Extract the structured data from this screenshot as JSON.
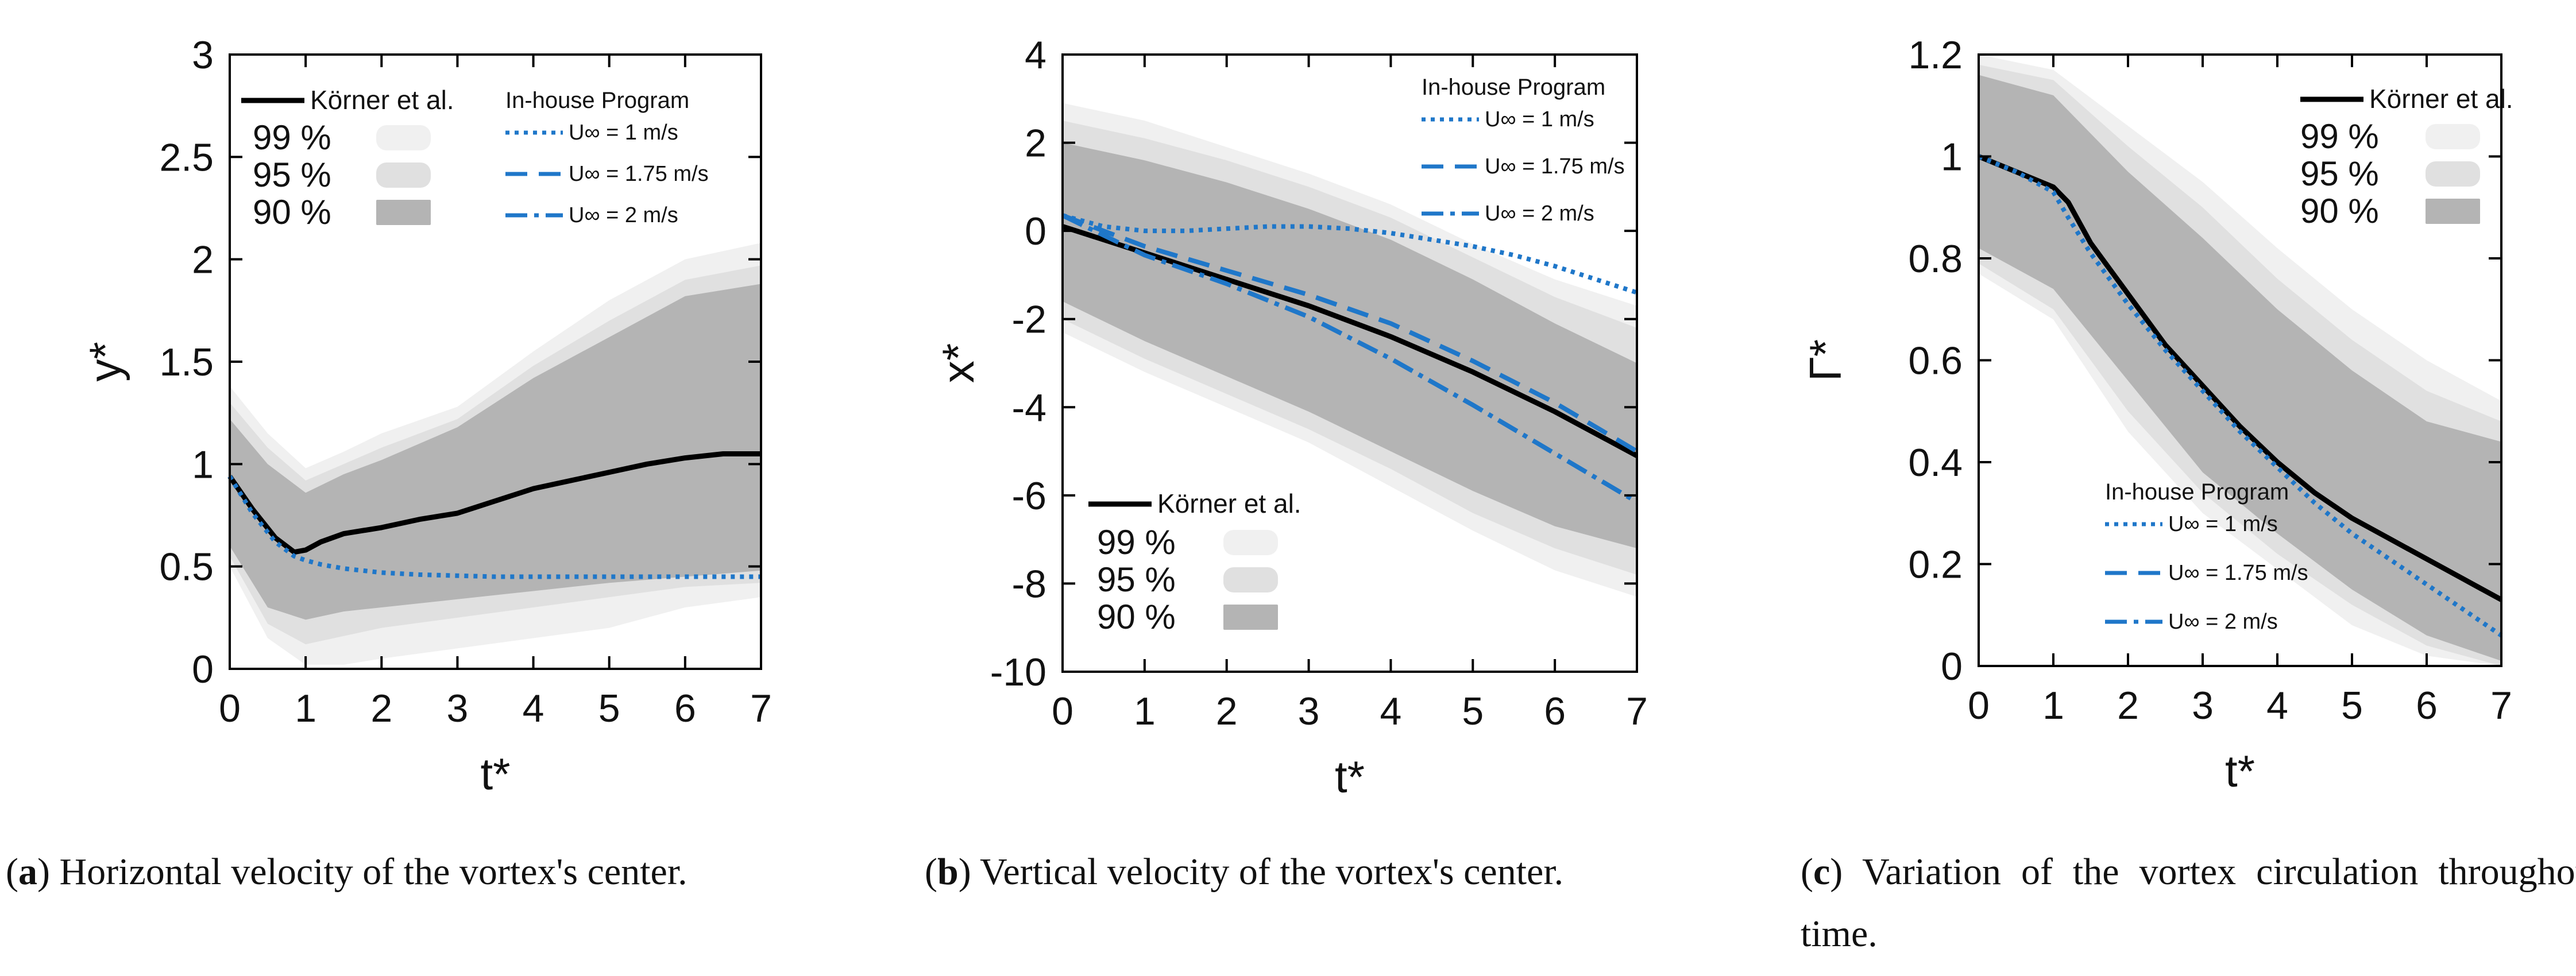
{
  "chart_data": [
    {
      "type": "line",
      "id": "a",
      "xlabel": "t*",
      "ylabel": "y*",
      "xlim": [
        0,
        7
      ],
      "ylim": [
        0,
        3
      ],
      "xticks": [
        "0",
        "1",
        "2",
        "3",
        "4",
        "5",
        "6",
        "7"
      ],
      "yticks": [
        "0",
        "0.5",
        "1",
        "1.5",
        "2",
        "2.5",
        "3"
      ],
      "caption_label": "a",
      "caption_text": "Horizontal velocity of the vortex's center.",
      "legend": {
        "reference": "Körner et al.",
        "bands": [
          "99 %",
          "95 %",
          "90 %"
        ],
        "inhouse_title": "In-house Program",
        "inhouse_items": [
          "U∞ = 1 m/s",
          "U∞ = 1.75 m/s",
          "U∞ = 2 m/s"
        ]
      },
      "series": [
        {
          "name": "Körner et al.",
          "x": [
            0,
            0.3,
            0.6,
            0.85,
            1.0,
            1.2,
            1.5,
            2.0,
            2.5,
            3.0,
            3.5,
            4.0,
            4.5,
            5.0,
            5.5,
            6.0,
            6.5,
            7.0
          ],
          "y": [
            0.94,
            0.78,
            0.64,
            0.57,
            0.58,
            0.62,
            0.66,
            0.69,
            0.73,
            0.76,
            0.82,
            0.88,
            0.92,
            0.96,
            1.0,
            1.03,
            1.05,
            1.05
          ]
        },
        {
          "name": "U∞ = 1 m/s",
          "x": [
            0,
            0.3,
            0.6,
            0.85,
            1.0,
            1.2,
            1.5,
            2.0,
            2.5,
            3.0,
            3.5,
            4.0,
            4.5,
            5.0,
            5.5,
            6.0,
            6.5,
            7.0
          ],
          "y": [
            0.94,
            0.76,
            0.62,
            0.55,
            0.53,
            0.51,
            0.49,
            0.47,
            0.46,
            0.455,
            0.45,
            0.45,
            0.45,
            0.45,
            0.45,
            0.45,
            0.45,
            0.45
          ]
        }
      ],
      "bands": [
        {
          "name": "99 %",
          "x": [
            0,
            0.5,
            1.0,
            1.5,
            2.0,
            3.0,
            4.0,
            5.0,
            6.0,
            7.0
          ],
          "lower": [
            0.5,
            0.15,
            0.02,
            0.02,
            0.05,
            0.1,
            0.15,
            0.2,
            0.3,
            0.35
          ],
          "upper": [
            1.38,
            1.15,
            0.98,
            1.06,
            1.15,
            1.28,
            1.55,
            1.8,
            2.0,
            2.08
          ]
        },
        {
          "name": "95 %",
          "x": [
            0,
            0.5,
            1.0,
            1.5,
            2.0,
            3.0,
            4.0,
            5.0,
            6.0,
            7.0
          ],
          "lower": [
            0.55,
            0.22,
            0.12,
            0.16,
            0.2,
            0.25,
            0.3,
            0.35,
            0.4,
            0.42
          ],
          "upper": [
            1.3,
            1.08,
            0.92,
            1.0,
            1.08,
            1.22,
            1.48,
            1.7,
            1.9,
            1.97
          ]
        },
        {
          "name": "90 %",
          "x": [
            0,
            0.5,
            1.0,
            1.5,
            2.0,
            3.0,
            4.0,
            5.0,
            6.0,
            7.0
          ],
          "lower": [
            0.6,
            0.3,
            0.24,
            0.28,
            0.3,
            0.34,
            0.38,
            0.42,
            0.45,
            0.48
          ],
          "upper": [
            1.22,
            1.0,
            0.86,
            0.95,
            1.02,
            1.18,
            1.42,
            1.62,
            1.82,
            1.88
          ]
        }
      ]
    },
    {
      "type": "line",
      "id": "b",
      "xlabel": "t*",
      "ylabel": "x*",
      "xlim": [
        0,
        7
      ],
      "ylim": [
        -10,
        4
      ],
      "xticks": [
        "0",
        "1",
        "2",
        "3",
        "4",
        "5",
        "6",
        "7"
      ],
      "yticks": [
        "-10",
        "-8",
        "-6",
        "-4",
        "-2",
        "0",
        "2",
        "4"
      ],
      "caption_label": "b",
      "caption_text": "Vertical velocity of the vortex's center.",
      "legend": {
        "reference": "Körner et al.",
        "bands": [
          "99 %",
          "95 %",
          "90 %"
        ],
        "inhouse_title": "In-house Program",
        "inhouse_items": [
          "U∞ = 1 m/s",
          "U∞ = 1.75 m/s",
          "U∞ = 2 m/s"
        ]
      },
      "series": [
        {
          "name": "Körner et al.",
          "x": [
            0,
            1,
            2,
            3,
            4,
            5,
            6,
            7
          ],
          "y": [
            0.1,
            -0.5,
            -1.1,
            -1.7,
            -2.4,
            -3.2,
            -4.1,
            -5.1
          ]
        },
        {
          "name": "U∞ = 1 m/s",
          "x": [
            0,
            0.5,
            1,
            1.5,
            2,
            2.5,
            3,
            3.5,
            4,
            4.5,
            5,
            5.5,
            6,
            6.5,
            7
          ],
          "y": [
            0.35,
            0.1,
            0.0,
            0.0,
            0.05,
            0.1,
            0.1,
            0.05,
            -0.05,
            -0.2,
            -0.35,
            -0.55,
            -0.8,
            -1.1,
            -1.4
          ]
        },
        {
          "name": "U∞ = 1.75 m/s",
          "x": [
            0,
            1,
            2,
            3,
            4,
            5,
            6,
            7
          ],
          "y": [
            0.35,
            -0.35,
            -0.9,
            -1.45,
            -2.1,
            -2.95,
            -3.9,
            -5.0
          ]
        },
        {
          "name": "U∞ = 2 m/s",
          "x": [
            0,
            1,
            2,
            3,
            4,
            5,
            6,
            7
          ],
          "y": [
            0.35,
            -0.55,
            -1.2,
            -1.95,
            -2.9,
            -3.95,
            -5.05,
            -6.15
          ]
        }
      ],
      "bands": [
        {
          "name": "99 %",
          "x": [
            0,
            1,
            2,
            3,
            4,
            5,
            6,
            7
          ],
          "lower": [
            -2.3,
            -3.2,
            -4.0,
            -4.8,
            -5.8,
            -6.8,
            -7.7,
            -8.3
          ],
          "upper": [
            2.9,
            2.5,
            1.9,
            1.3,
            0.6,
            -0.3,
            -1.1,
            -1.7
          ]
        },
        {
          "name": "95 %",
          "x": [
            0,
            1,
            2,
            3,
            4,
            5,
            6,
            7
          ],
          "lower": [
            -2.0,
            -2.9,
            -3.7,
            -4.5,
            -5.4,
            -6.4,
            -7.2,
            -7.8
          ],
          "upper": [
            2.5,
            2.1,
            1.6,
            1.0,
            0.3,
            -0.6,
            -1.5,
            -2.2
          ]
        },
        {
          "name": "90 %",
          "x": [
            0,
            1,
            2,
            3,
            4,
            5,
            6,
            7
          ],
          "lower": [
            -1.6,
            -2.5,
            -3.3,
            -4.1,
            -5.0,
            -5.9,
            -6.7,
            -7.2
          ],
          "upper": [
            2.0,
            1.6,
            1.1,
            0.5,
            -0.2,
            -1.1,
            -2.1,
            -3.0
          ]
        }
      ]
    },
    {
      "type": "line",
      "id": "c",
      "xlabel": "t*",
      "ylabel": "Γ*",
      "xlim": [
        0,
        7
      ],
      "ylim": [
        0,
        1.2
      ],
      "xticks": [
        "0",
        "1",
        "2",
        "3",
        "4",
        "5",
        "6",
        "7"
      ],
      "yticks": [
        "0",
        "0.2",
        "0.4",
        "0.6",
        "0.8",
        "1",
        "1.2"
      ],
      "caption_label": "c",
      "caption_text": "Variation of the vortex circulation throughout time.",
      "legend": {
        "reference": "Körner et al.",
        "bands": [
          "99 %",
          "95 %",
          "90 %"
        ],
        "inhouse_title": "In-house Program",
        "inhouse_items": [
          "U∞ = 1 m/s",
          "U∞ = 1.75 m/s",
          "U∞ = 2 m/s"
        ]
      },
      "series": [
        {
          "name": "Körner et al.",
          "x": [
            0,
            0.5,
            1.0,
            1.2,
            1.5,
            2.0,
            2.5,
            3.0,
            3.5,
            4.0,
            4.5,
            5.0,
            5.5,
            6.0,
            6.5,
            7.0
          ],
          "y": [
            1.0,
            0.97,
            0.94,
            0.91,
            0.83,
            0.73,
            0.63,
            0.55,
            0.47,
            0.4,
            0.34,
            0.29,
            0.25,
            0.21,
            0.17,
            0.13
          ]
        },
        {
          "name": "U∞ = 1 m/s",
          "x": [
            0,
            0.5,
            1.0,
            1.2,
            1.5,
            2.0,
            2.5,
            3.0,
            3.5,
            4.0,
            4.5,
            5.0,
            5.5,
            6.0,
            6.5,
            7.0
          ],
          "y": [
            1.0,
            0.97,
            0.93,
            0.88,
            0.81,
            0.71,
            0.62,
            0.54,
            0.46,
            0.39,
            0.32,
            0.26,
            0.21,
            0.16,
            0.11,
            0.06
          ]
        }
      ],
      "bands": [
        {
          "name": "99 %",
          "x": [
            0,
            1,
            2,
            3,
            4,
            5,
            6,
            7
          ],
          "lower": [
            0.77,
            0.68,
            0.46,
            0.3,
            0.19,
            0.08,
            0.02,
            0.0
          ],
          "upper": [
            1.2,
            1.17,
            1.06,
            0.95,
            0.82,
            0.7,
            0.6,
            0.52
          ]
        },
        {
          "name": "95 %",
          "x": [
            0,
            1,
            2,
            3,
            4,
            5,
            6,
            7
          ],
          "lower": [
            0.79,
            0.7,
            0.5,
            0.34,
            0.22,
            0.12,
            0.04,
            0.0
          ],
          "upper": [
            1.18,
            1.15,
            1.02,
            0.9,
            0.76,
            0.64,
            0.54,
            0.48
          ]
        },
        {
          "name": "90 %",
          "x": [
            0,
            1,
            2,
            3,
            4,
            5,
            6,
            7
          ],
          "lower": [
            0.82,
            0.74,
            0.56,
            0.38,
            0.26,
            0.15,
            0.06,
            0.01
          ],
          "upper": [
            1.16,
            1.12,
            0.97,
            0.84,
            0.7,
            0.58,
            0.48,
            0.44
          ]
        }
      ]
    }
  ],
  "colors": {
    "reference_line": "#000000",
    "inhouse_line": "#1f77c9",
    "band_99": "#f0f0f0",
    "band_95": "#e0e0e0",
    "band_90": "#b4b4b4"
  }
}
